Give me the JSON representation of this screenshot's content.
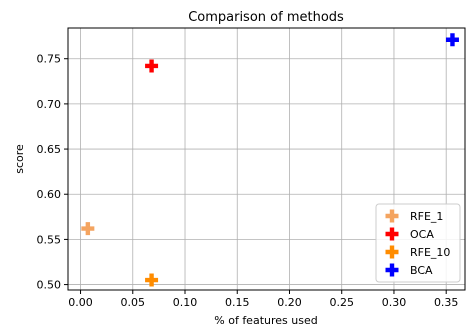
{
  "chart_data": {
    "type": "scatter",
    "title": "Comparison of methods",
    "xlabel": "% of features used",
    "ylabel": "score",
    "xlim": [
      -0.012,
      0.368
    ],
    "ylim": [
      0.494,
      0.784
    ],
    "xticks": [
      "0.00",
      "0.05",
      "0.10",
      "0.15",
      "0.20",
      "0.25",
      "0.30",
      "0.35"
    ],
    "yticks": [
      "0.50",
      "0.55",
      "0.60",
      "0.65",
      "0.70",
      "0.75"
    ],
    "grid": true,
    "legend_position": "lower right",
    "series": [
      {
        "name": "RFE_1",
        "color": "#f4a460",
        "marker": "plus",
        "points": [
          {
            "x": 0.007,
            "y": 0.562
          }
        ]
      },
      {
        "name": "OCA",
        "color": "#ff0000",
        "marker": "plus",
        "points": [
          {
            "x": 0.068,
            "y": 0.742
          }
        ]
      },
      {
        "name": "RFE_10",
        "color": "#ff8c00",
        "marker": "plus",
        "points": [
          {
            "x": 0.068,
            "y": 0.505
          }
        ]
      },
      {
        "name": "BCA",
        "color": "#0000ff",
        "marker": "plus",
        "points": [
          {
            "x": 0.356,
            "y": 0.771
          }
        ]
      }
    ]
  }
}
